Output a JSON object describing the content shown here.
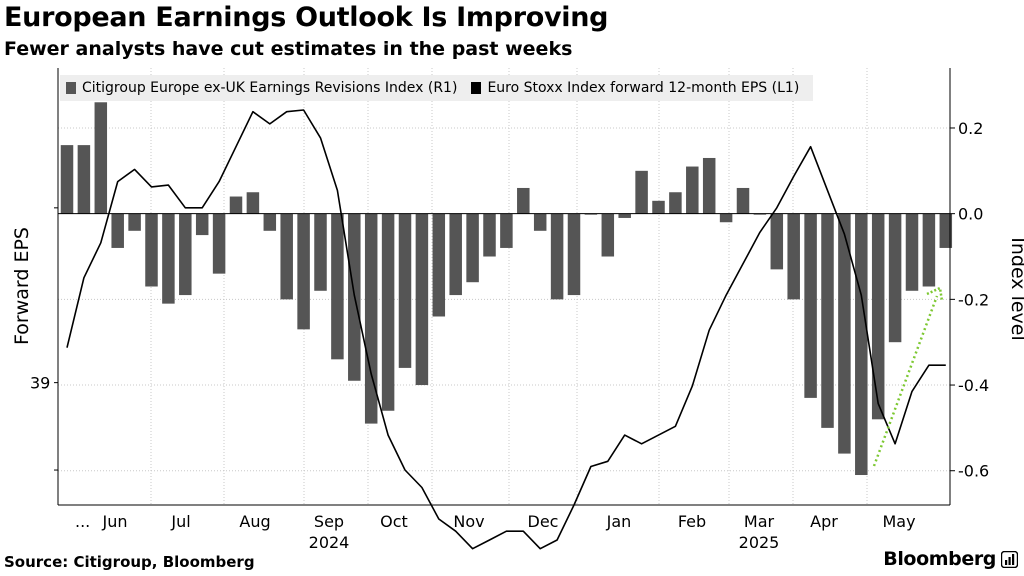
{
  "header": {
    "title": "European Earnings Outlook Is Improving",
    "subtitle": "Fewer analysts have cut estimates in the past weeks"
  },
  "footer": {
    "source": "Source: Citigroup, Bloomberg",
    "brand": "Bloomberg"
  },
  "colors": {
    "bars": "#555555",
    "line": "#000000",
    "arrow": "#7dc832",
    "grid": "#c8c8c8"
  },
  "chart_data": {
    "type": "bar+line",
    "title": "European Earnings Outlook Is Improving",
    "subtitle": "Fewer analysts have cut estimates in the past weeks",
    "left_axis_label": "Forward EPS",
    "right_axis_label": "Index level",
    "left_tick_labels": [
      "39"
    ],
    "right_ticks": [
      0.2,
      0.0,
      -0.2,
      -0.4,
      -0.6
    ],
    "right_tick_labels": [
      "0.2",
      "0.0",
      "-0.2",
      "-0.4",
      "-0.6"
    ],
    "right_ylim": [
      -0.68,
      0.34
    ],
    "left_ylim": [
      38.3,
      40.8
    ],
    "x_labels": [
      "...",
      "Jun",
      "Jul",
      "Aug",
      "Sep",
      "Oct",
      "Nov",
      "Dec",
      "Jan",
      "Feb",
      "Mar",
      "Apr",
      "May"
    ],
    "year_labels": [
      "2024",
      "2025"
    ],
    "legend": [
      {
        "name": "Citigroup Europe ex-UK Earnings Revisions Index (R1)",
        "color": "#555555"
      },
      {
        "name": "Euro Stoxx Index forward 12-month EPS (L1)",
        "color": "#000000"
      }
    ],
    "series": [
      {
        "name": "Citigroup Europe ex-UK Earnings Revisions Index (R1)",
        "type": "bar",
        "axis": "right",
        "values": [
          0.16,
          0.16,
          0.26,
          -0.08,
          -0.04,
          -0.17,
          -0.21,
          -0.19,
          -0.05,
          -0.14,
          0.04,
          0.05,
          -0.04,
          -0.2,
          -0.27,
          -0.18,
          -0.34,
          -0.39,
          -0.49,
          -0.46,
          -0.36,
          -0.4,
          -0.24,
          -0.19,
          -0.16,
          -0.1,
          -0.08,
          0.06,
          -0.04,
          -0.2,
          -0.19,
          0.0,
          -0.1,
          -0.01,
          0.1,
          0.03,
          0.05,
          0.11,
          0.13,
          -0.02,
          0.06,
          -0.002,
          -0.13,
          -0.2,
          -0.43,
          -0.5,
          -0.56,
          -0.61,
          -0.48,
          -0.3,
          -0.18,
          -0.17,
          -0.08
        ]
      },
      {
        "name": "Euro Stoxx Index forward 12-month EPS (L1)",
        "type": "line",
        "axis": "left",
        "values": [
          39.2,
          39.6,
          39.8,
          40.15,
          40.22,
          40.12,
          40.13,
          40.0,
          40.0,
          40.15,
          40.35,
          40.55,
          40.48,
          40.55,
          40.56,
          40.4,
          40.1,
          39.5,
          39.05,
          38.7,
          38.5,
          38.4,
          38.22,
          38.15,
          38.05,
          38.1,
          38.15,
          38.15,
          38.05,
          38.1,
          38.3,
          38.52,
          38.55,
          38.7,
          38.65,
          38.7,
          38.75,
          38.98,
          39.3,
          39.5,
          39.68,
          39.86,
          40.0,
          40.18,
          40.35,
          40.1,
          39.85,
          39.5,
          38.88,
          38.65,
          38.95,
          39.1,
          39.1
        ]
      }
    ],
    "annotation": "green dotted arrow indicating rising trend"
  }
}
